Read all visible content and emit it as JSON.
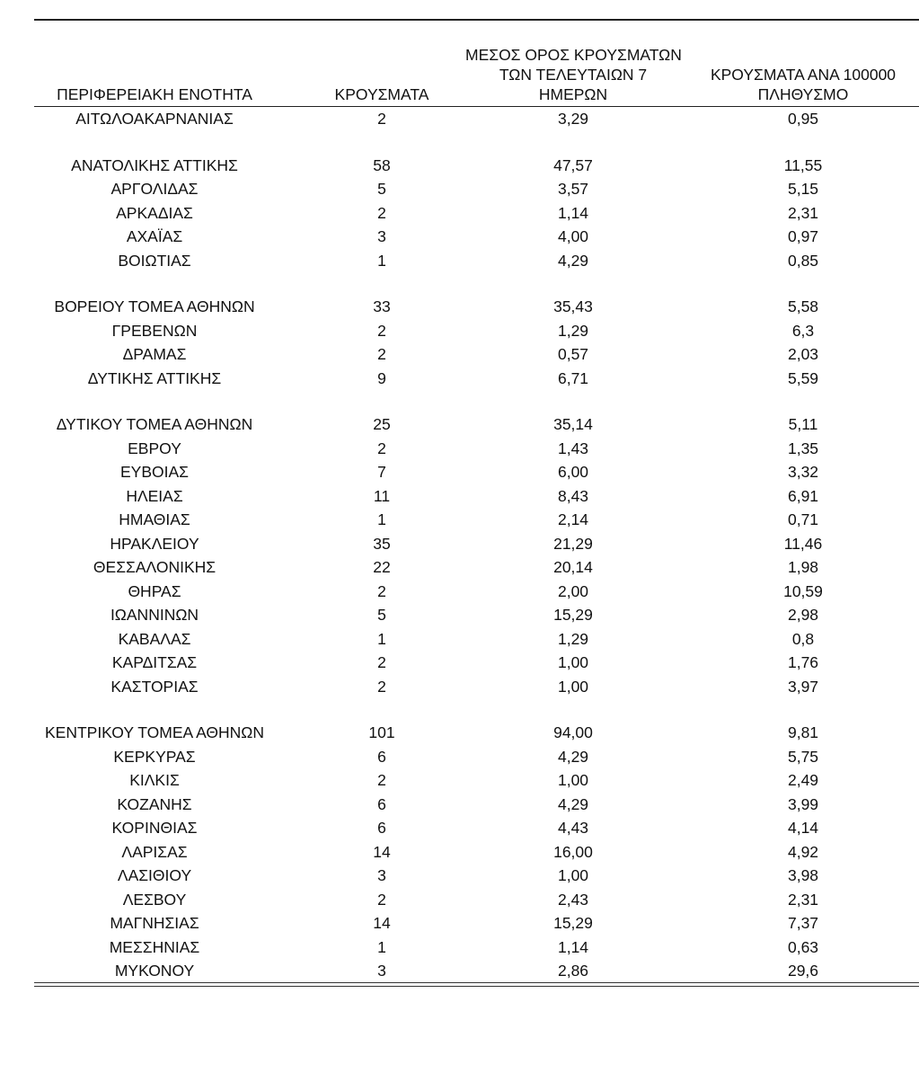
{
  "headers": {
    "region": [
      "ΠΕΡΙΦΕΡΕΙΑΚΗ ΕΝΟΤΗΤΑ"
    ],
    "cases": [
      "ΚΡΟΥΣΜΑΤΑ"
    ],
    "avg7": [
      "ΜΕΣΟΣ ΟΡΟΣ ΚΡΟΥΣΜΑΤΩΝ",
      "ΤΩΝ ΤΕΛΕΥΤΑΙΩΝ 7",
      "ΗΜΕΡΩΝ"
    ],
    "per100k": [
      "ΚΡΟΥΣΜΑΤΑ ΑΝΑ 100000",
      "ΠΛΗΘΥΣΜΟ"
    ]
  },
  "rows": [
    {
      "region": "ΑΙΤΩΛΟΑΚΑΡΝΑΝΙΑΣ",
      "cases": "2",
      "avg7": "3,29",
      "per100k": "0,95"
    },
    {
      "region": "ΑΝΑΤΟΛΙΚΗΣ ΑΤΤΙΚΗΣ",
      "cases": "58",
      "avg7": "47,57",
      "per100k": "11,55",
      "gap": true
    },
    {
      "region": "ΑΡΓΟΛΙΔΑΣ",
      "cases": "5",
      "avg7": "3,57",
      "per100k": "5,15"
    },
    {
      "region": "ΑΡΚΑΔΙΑΣ",
      "cases": "2",
      "avg7": "1,14",
      "per100k": "2,31"
    },
    {
      "region": "ΑΧΑΪΑΣ",
      "cases": "3",
      "avg7": "4,00",
      "per100k": "0,97"
    },
    {
      "region": "ΒΟΙΩΤΙΑΣ",
      "cases": "1",
      "avg7": "4,29",
      "per100k": "0,85"
    },
    {
      "region": "ΒΟΡΕΙΟΥ ΤΟΜΕΑ ΑΘΗΝΩΝ",
      "cases": "33",
      "avg7": "35,43",
      "per100k": "5,58",
      "gap": true
    },
    {
      "region": "ΓΡΕΒΕΝΩΝ",
      "cases": "2",
      "avg7": "1,29",
      "per100k": "6,3"
    },
    {
      "region": "ΔΡΑΜΑΣ",
      "cases": "2",
      "avg7": "0,57",
      "per100k": "2,03"
    },
    {
      "region": "ΔΥΤΙΚΗΣ ΑΤΤΙΚΗΣ",
      "cases": "9",
      "avg7": "6,71",
      "per100k": "5,59"
    },
    {
      "region": "ΔΥΤΙΚΟΥ ΤΟΜΕΑ ΑΘΗΝΩΝ",
      "cases": "25",
      "avg7": "35,14",
      "per100k": "5,11",
      "gap": true
    },
    {
      "region": "ΕΒΡΟΥ",
      "cases": "2",
      "avg7": "1,43",
      "per100k": "1,35"
    },
    {
      "region": "ΕΥΒΟΙΑΣ",
      "cases": "7",
      "avg7": "6,00",
      "per100k": "3,32"
    },
    {
      "region": "ΗΛΕΙΑΣ",
      "cases": "11",
      "avg7": "8,43",
      "per100k": "6,91"
    },
    {
      "region": "ΗΜΑΘΙΑΣ",
      "cases": "1",
      "avg7": "2,14",
      "per100k": "0,71"
    },
    {
      "region": "ΗΡΑΚΛΕΙΟΥ",
      "cases": "35",
      "avg7": "21,29",
      "per100k": "11,46"
    },
    {
      "region": "ΘΕΣΣΑΛΟΝΙΚΗΣ",
      "cases": "22",
      "avg7": "20,14",
      "per100k": "1,98"
    },
    {
      "region": "ΘΗΡΑΣ",
      "cases": "2",
      "avg7": "2,00",
      "per100k": "10,59"
    },
    {
      "region": "ΙΩΑΝΝΙΝΩΝ",
      "cases": "5",
      "avg7": "15,29",
      "per100k": "2,98"
    },
    {
      "region": "ΚΑΒΑΛΑΣ",
      "cases": "1",
      "avg7": "1,29",
      "per100k": "0,8"
    },
    {
      "region": "ΚΑΡΔΙΤΣΑΣ",
      "cases": "2",
      "avg7": "1,00",
      "per100k": "1,76"
    },
    {
      "region": "ΚΑΣΤΟΡΙΑΣ",
      "cases": "2",
      "avg7": "1,00",
      "per100k": "3,97"
    },
    {
      "region": "ΚΕΝΤΡΙΚΟΥ ΤΟΜΕΑ ΑΘΗΝΩΝ",
      "cases": "101",
      "avg7": "94,00",
      "per100k": "9,81",
      "gap": true
    },
    {
      "region": "ΚΕΡΚΥΡΑΣ",
      "cases": "6",
      "avg7": "4,29",
      "per100k": "5,75"
    },
    {
      "region": "ΚΙΛΚΙΣ",
      "cases": "2",
      "avg7": "1,00",
      "per100k": "2,49"
    },
    {
      "region": "ΚΟΖΑΝΗΣ",
      "cases": "6",
      "avg7": "4,29",
      "per100k": "3,99"
    },
    {
      "region": "ΚΟΡΙΝΘΙΑΣ",
      "cases": "6",
      "avg7": "4,43",
      "per100k": "4,14"
    },
    {
      "region": "ΛΑΡΙΣΑΣ",
      "cases": "14",
      "avg7": "16,00",
      "per100k": "4,92"
    },
    {
      "region": "ΛΑΣΙΘΙΟΥ",
      "cases": "3",
      "avg7": "1,00",
      "per100k": "3,98"
    },
    {
      "region": "ΛΕΣΒΟΥ",
      "cases": "2",
      "avg7": "2,43",
      "per100k": "2,31"
    },
    {
      "region": "ΜΑΓΝΗΣΙΑΣ",
      "cases": "14",
      "avg7": "15,29",
      "per100k": "7,37"
    },
    {
      "region": "ΜΕΣΣΗΝΙΑΣ",
      "cases": "1",
      "avg7": "1,14",
      "per100k": "0,63"
    },
    {
      "region": "ΜΥΚΟΝΟΥ",
      "cases": "3",
      "avg7": "2,86",
      "per100k": "29,6"
    }
  ]
}
